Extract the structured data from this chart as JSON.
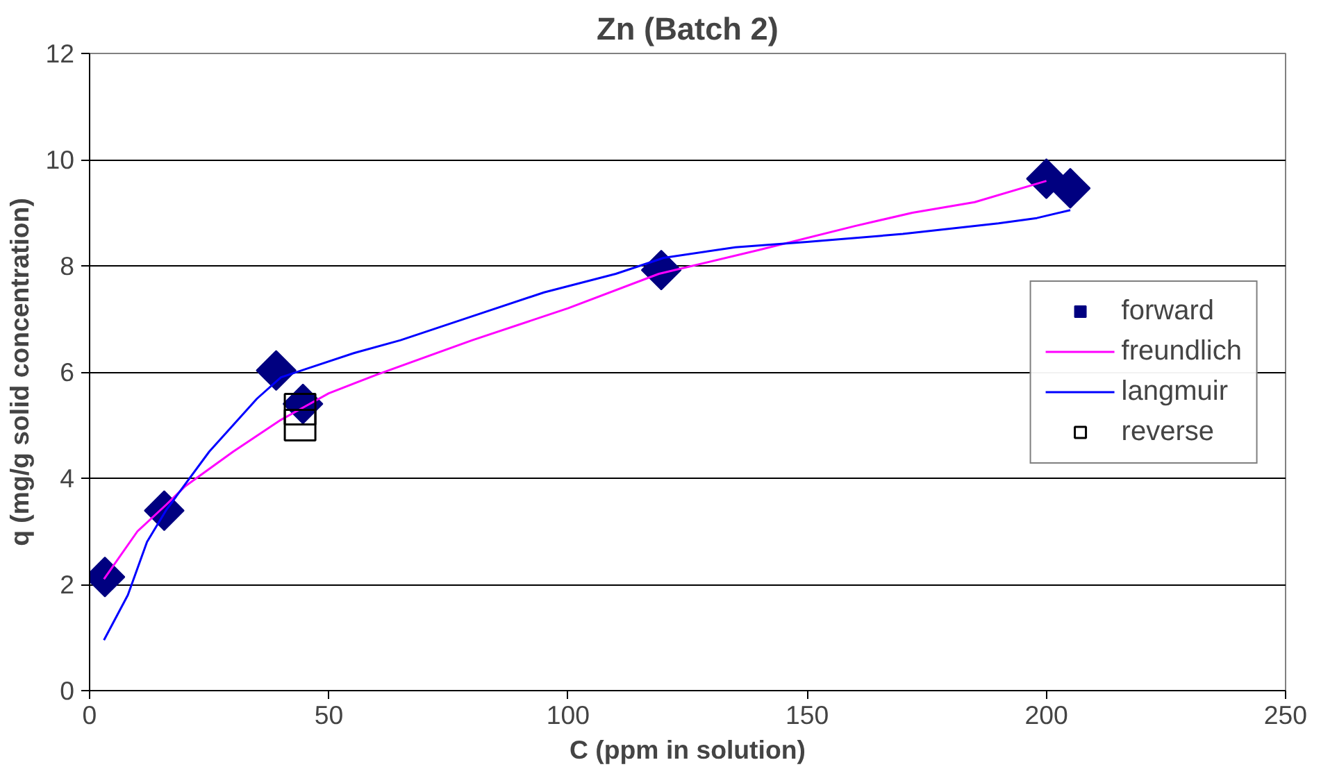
{
  "chart_data": {
    "type": "line",
    "title": "Zn (Batch 2)",
    "xlabel": "C (ppm in solution)",
    "ylabel": "q (mg/g solid concentration)",
    "xlim": [
      0,
      250
    ],
    "xticks": [
      0,
      50,
      100,
      150,
      200,
      250
    ],
    "ylim": [
      0,
      12
    ],
    "yticks": [
      0,
      2,
      4,
      6,
      8,
      10,
      12
    ],
    "grid": "y",
    "legend": "right",
    "series": [
      {
        "name": "forward",
        "type": "scatter",
        "marker": "diamond",
        "color": "#000080",
        "x": [
          3.2,
          15.6,
          39,
          44.6,
          119.5,
          200,
          205
        ],
        "values": [
          2.14,
          3.39,
          6.03,
          5.4,
          7.92,
          9.64,
          9.46
        ]
      },
      {
        "name": "freundlich",
        "color": "#ff00ff",
        "x": [
          3,
          10,
          16,
          20,
          30,
          40,
          45,
          50,
          60,
          80,
          100,
          119,
          140,
          160,
          172,
          185,
          200
        ],
        "values": [
          2.1,
          3.0,
          3.5,
          3.85,
          4.5,
          5.1,
          5.35,
          5.6,
          5.95,
          6.6,
          7.2,
          7.85,
          8.3,
          8.75,
          9.0,
          9.2,
          9.6
        ]
      },
      {
        "name": "langmuir",
        "color": "#0000ff",
        "x": [
          3,
          8,
          12,
          16,
          25,
          35,
          40,
          45,
          55,
          65,
          80,
          95,
          110,
          120,
          135,
          150,
          170,
          190,
          198,
          205
        ],
        "values": [
          0.95,
          1.8,
          2.8,
          3.4,
          4.5,
          5.5,
          5.9,
          6.05,
          6.35,
          6.6,
          7.05,
          7.5,
          7.85,
          8.15,
          8.35,
          8.45,
          8.6,
          8.8,
          8.9,
          9.05
        ]
      },
      {
        "name": "reverse",
        "type": "scatter",
        "marker": "square",
        "color": "#000000",
        "x": [
          44,
          44
        ],
        "values": [
          5.3,
          5.0
        ]
      }
    ]
  }
}
